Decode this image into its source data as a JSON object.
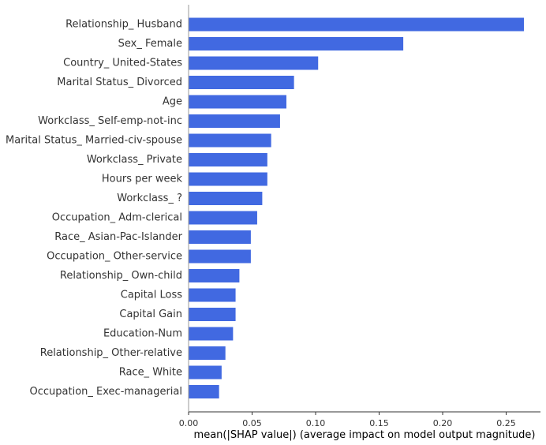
{
  "chart_data": {
    "type": "bar",
    "orientation": "horizontal",
    "categories": [
      "Relationship_ Husband",
      "Sex_ Female",
      "Country_ United-States",
      "Marital Status_ Divorced",
      "Age",
      "Workclass_ Self-emp-not-inc",
      "Marital Status_ Married-civ-spouse",
      "Workclass_ Private",
      "Hours per week",
      "Workclass_ ?",
      "Occupation_ Adm-clerical",
      "Race_ Asian-Pac-Islander",
      "Occupation_ Other-service",
      "Relationship_ Own-child",
      "Capital Loss",
      "Capital Gain",
      "Education-Num",
      "Relationship_ Other-relative",
      "Race_ White",
      "Occupation_ Exec-managerial"
    ],
    "values": [
      0.264,
      0.169,
      0.102,
      0.083,
      0.077,
      0.072,
      0.065,
      0.062,
      0.062,
      0.058,
      0.054,
      0.049,
      0.049,
      0.04,
      0.037,
      0.037,
      0.035,
      0.029,
      0.026,
      0.024
    ],
    "xlim": [
      0,
      0.277
    ],
    "xticks": [
      0.0,
      0.05,
      0.1,
      0.15,
      0.2,
      0.25
    ],
    "xtick_labels": [
      "0.00",
      "0.05",
      "0.10",
      "0.15",
      "0.20",
      "0.25"
    ],
    "xlabel": "mean(|SHAP value|) (average impact on model output magnitude)",
    "title": "",
    "ylabel": "",
    "grid": false,
    "bar_color": "#4169e1"
  }
}
